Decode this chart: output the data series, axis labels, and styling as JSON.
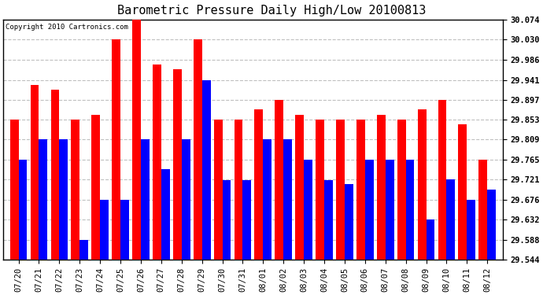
{
  "title": "Barometric Pressure Daily High/Low 20100813",
  "copyright": "Copyright 2010 Cartronics.com",
  "categories": [
    "07/20",
    "07/21",
    "07/22",
    "07/23",
    "07/24",
    "07/25",
    "07/26",
    "07/27",
    "07/28",
    "07/29",
    "07/30",
    "07/31",
    "08/01",
    "08/02",
    "08/03",
    "08/04",
    "08/05",
    "08/06",
    "08/07",
    "08/08",
    "08/09",
    "08/10",
    "08/11",
    "08/12"
  ],
  "highs": [
    29.853,
    29.93,
    29.919,
    29.853,
    29.864,
    30.03,
    30.074,
    29.975,
    29.964,
    30.03,
    29.853,
    29.853,
    29.875,
    29.897,
    29.864,
    29.853,
    29.853,
    29.853,
    29.864,
    29.853,
    29.875,
    29.897,
    29.842,
    29.765
  ],
  "lows": [
    29.765,
    29.809,
    29.809,
    29.588,
    29.676,
    29.676,
    29.809,
    29.743,
    29.809,
    29.941,
    29.72,
    29.72,
    29.809,
    29.809,
    29.765,
    29.72,
    29.71,
    29.765,
    29.765,
    29.765,
    29.632,
    29.721,
    29.676,
    29.698
  ],
  "high_color": "#ff0000",
  "low_color": "#0000ff",
  "bg_color": "#ffffff",
  "plot_bg_color": "#ffffff",
  "grid_color": "#c0c0c0",
  "yticks": [
    29.544,
    29.588,
    29.632,
    29.676,
    29.721,
    29.765,
    29.809,
    29.853,
    29.897,
    29.941,
    29.986,
    30.03,
    30.074
  ],
  "ymin": 29.544,
  "ymax": 30.074,
  "bar_width": 0.42
}
